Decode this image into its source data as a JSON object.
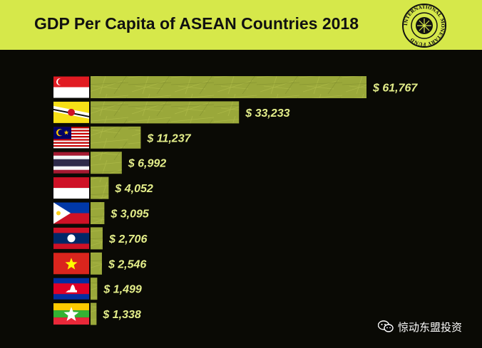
{
  "header": {
    "title": "GDP Per Capita of ASEAN Countries 2018"
  },
  "logo": {
    "name": "imf-seal",
    "text": "INTERNATIONAL MONETARY FUND"
  },
  "watermark": {
    "icon": "wechat-icon",
    "text": "惊动东盟投资"
  },
  "colors": {
    "header_bg": "#d6e84a",
    "background": "#0a0a05",
    "bar": "#9aa83a",
    "label": "#e4ee8a"
  },
  "chart_data": {
    "type": "bar",
    "orientation": "horizontal",
    "title": "GDP Per Capita of ASEAN Countries 2018",
    "flags": [
      "singapore-flag",
      "brunei-flag",
      "malaysia-flag",
      "thailand-flag",
      "indonesia-flag",
      "philippines-flag",
      "laos-flag",
      "vietnam-flag",
      "cambodia-flag",
      "myanmar-flag"
    ],
    "values": [
      61767,
      33233,
      11237,
      6992,
      4052,
      3095,
      2706,
      2546,
      1499,
      1338
    ],
    "labels": [
      "$ 61,767",
      "$ 33,233",
      "$ 11,237",
      "$ 6,992",
      "$ 4,052",
      "$ 3,095",
      "$ 2,706",
      "$ 2,546",
      "$ 1,499",
      "$ 1,338"
    ],
    "xlim": [
      0,
      61767
    ],
    "grid": false,
    "legend": "none"
  }
}
